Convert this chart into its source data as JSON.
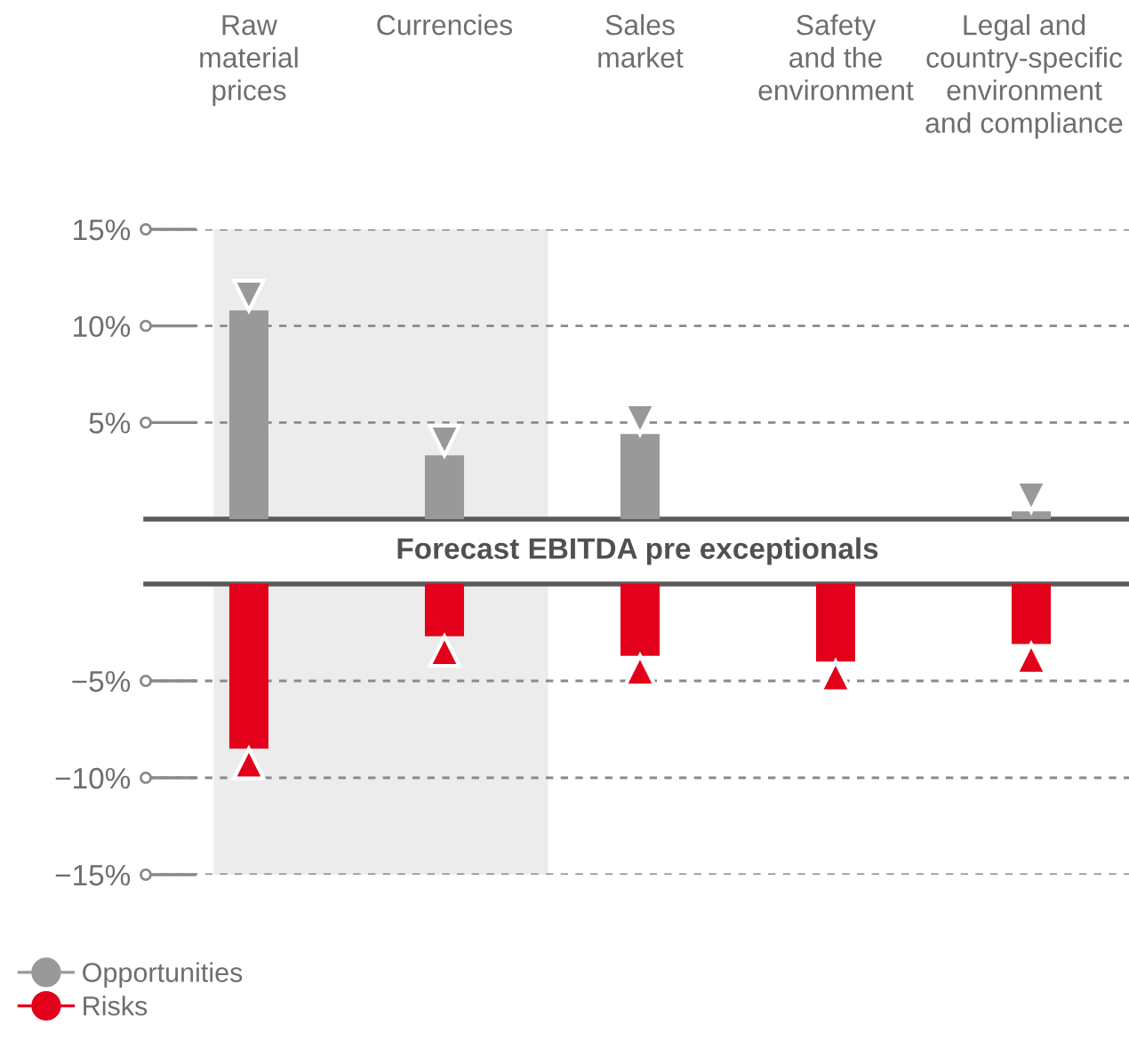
{
  "chart_data": [
    {
      "type": "bar",
      "categories": [
        "Raw\nmaterial\nprices",
        "Currencies",
        "Sales\nmarket",
        "Safety\nand the\nenvironment",
        "Legal and\ncountry-specific\nenvironment\nand compliance"
      ],
      "series": [
        {
          "name": "Opportunities",
          "color": "#999999",
          "values": [
            10.8,
            3.3,
            4.4,
            0,
            0.4
          ]
        }
      ],
      "ylim": [
        0,
        15
      ],
      "yticks": [
        {
          "value": 5,
          "label": "5%"
        },
        {
          "value": 10,
          "label": "10%"
        },
        {
          "value": 15,
          "label": "15%"
        }
      ],
      "grid": "y",
      "marker": "triangle",
      "legend": "bottom left",
      "bands": [
        {
          "axis": "x",
          "from": "Raw\nmaterial\nprices",
          "to": "Currencies",
          "color": "#ececec"
        }
      ],
      "annotations": [
        "Forecast EBITDA pre exceptionals"
      ]
    },
    {
      "type": "bar",
      "categories": [
        null,
        null,
        null,
        null,
        null
      ],
      "series": [
        {
          "name": "Risks",
          "color": "#e2001a",
          "values": [
            -8.5,
            -2.7,
            -3.7,
            -4.0,
            -3.1
          ]
        }
      ],
      "ylim": [
        -15,
        0
      ],
      "yticks": [
        {
          "value": -5,
          "label": "−5%"
        },
        {
          "value": -10,
          "label": "−10%"
        },
        {
          "value": -15,
          "label": "−15%"
        }
      ],
      "grid": "y",
      "marker": "triangle",
      "legend": "bottom left",
      "tick_labels": "y"
    }
  ]
}
